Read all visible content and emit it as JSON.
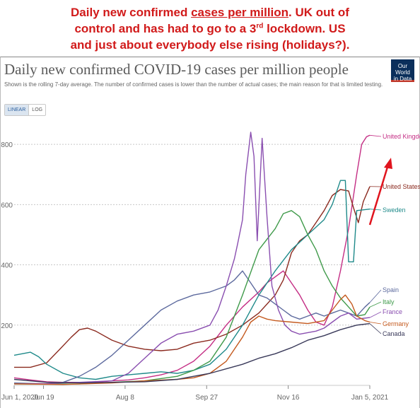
{
  "annotation": {
    "line1_a": "Daily new confirmed ",
    "line1_u": "cases per million",
    "line1_b": ". UK out of",
    "line2_a": "control and has had to go to a 3",
    "line2_sup": "rd",
    "line2_b": " lockdown. US",
    "line3": "and just about everybody else rising (holidays?).",
    "color": "#d11a1a"
  },
  "logo": {
    "line1": "Our World",
    "line2": "in Data"
  },
  "scale_toggle": {
    "linear": "LINEAR",
    "log": "LOG",
    "selected": "linear"
  },
  "chart_data": {
    "type": "line",
    "title": "Daily new confirmed COVID-19 cases per million people",
    "subtitle": "Shown is the rolling 7-day average. The number of confirmed cases is lower than the number of actual cases; the main reason for that is limited testing.",
    "xlabel": "",
    "ylabel": "",
    "x_ticks": [
      "Jun 1, 2020",
      "Jun 19",
      "Aug 8",
      "Sep 27",
      "Nov 16",
      "Jan 5, 2021"
    ],
    "x_tick_days": [
      0,
      18,
      68,
      118,
      168,
      218
    ],
    "y_ticks": [
      0,
      200,
      400,
      600,
      800
    ],
    "y_tick_labels": [
      "",
      "200",
      "400",
      "600",
      "800"
    ],
    "xlim_days": [
      0,
      218
    ],
    "ylim": [
      0,
      880
    ],
    "grid": "horizontal dotted",
    "legend": "line-end labels on right",
    "x_unit": "days since Jun 1, 2020",
    "series": [
      {
        "name": "United Kingdom",
        "color": "#c42d84",
        "points": [
          [
            0,
            25
          ],
          [
            10,
            18
          ],
          [
            20,
            12
          ],
          [
            30,
            10
          ],
          [
            40,
            10
          ],
          [
            50,
            10
          ],
          [
            60,
            15
          ],
          [
            70,
            18
          ],
          [
            80,
            25
          ],
          [
            90,
            35
          ],
          [
            100,
            50
          ],
          [
            110,
            80
          ],
          [
            120,
            130
          ],
          [
            130,
            200
          ],
          [
            140,
            260
          ],
          [
            150,
            310
          ],
          [
            155,
            340
          ],
          [
            160,
            360
          ],
          [
            165,
            380
          ],
          [
            170,
            340
          ],
          [
            175,
            300
          ],
          [
            180,
            250
          ],
          [
            185,
            210
          ],
          [
            190,
            200
          ],
          [
            195,
            260
          ],
          [
            200,
            380
          ],
          [
            205,
            520
          ],
          [
            210,
            700
          ],
          [
            213,
            800
          ],
          [
            216,
            825
          ],
          [
            218,
            830
          ]
        ]
      },
      {
        "name": "United States",
        "color": "#8b2a1f",
        "points": [
          [
            0,
            60
          ],
          [
            10,
            60
          ],
          [
            20,
            75
          ],
          [
            28,
            120
          ],
          [
            35,
            160
          ],
          [
            40,
            185
          ],
          [
            45,
            190
          ],
          [
            50,
            180
          ],
          [
            60,
            150
          ],
          [
            70,
            130
          ],
          [
            80,
            120
          ],
          [
            90,
            115
          ],
          [
            100,
            120
          ],
          [
            110,
            140
          ],
          [
            120,
            150
          ],
          [
            130,
            170
          ],
          [
            140,
            200
          ],
          [
            150,
            240
          ],
          [
            160,
            300
          ],
          [
            165,
            350
          ],
          [
            170,
            440
          ],
          [
            175,
            480
          ],
          [
            180,
            500
          ],
          [
            185,
            540
          ],
          [
            190,
            580
          ],
          [
            195,
            630
          ],
          [
            200,
            650
          ],
          [
            205,
            645
          ],
          [
            208,
            590
          ],
          [
            211,
            540
          ],
          [
            214,
            610
          ],
          [
            218,
            660
          ]
        ]
      },
      {
        "name": "Sweden",
        "color": "#1f8a8a",
        "points": [
          [
            0,
            100
          ],
          [
            10,
            110
          ],
          [
            15,
            95
          ],
          [
            20,
            70
          ],
          [
            30,
            40
          ],
          [
            40,
            25
          ],
          [
            50,
            20
          ],
          [
            60,
            30
          ],
          [
            70,
            35
          ],
          [
            80,
            40
          ],
          [
            90,
            45
          ],
          [
            100,
            40
          ],
          [
            110,
            50
          ],
          [
            120,
            70
          ],
          [
            130,
            120
          ],
          [
            140,
            200
          ],
          [
            150,
            300
          ],
          [
            160,
            380
          ],
          [
            170,
            450
          ],
          [
            180,
            500
          ],
          [
            190,
            550
          ],
          [
            195,
            600
          ],
          [
            200,
            680
          ],
          [
            203,
            680
          ],
          [
            205,
            410
          ],
          [
            208,
            410
          ],
          [
            210,
            580
          ],
          [
            218,
            585
          ]
        ]
      },
      {
        "name": "Spain",
        "color": "#5d6a9e",
        "points": [
          [
            0,
            8
          ],
          [
            20,
            5
          ],
          [
            30,
            10
          ],
          [
            40,
            30
          ],
          [
            50,
            60
          ],
          [
            60,
            100
          ],
          [
            70,
            150
          ],
          [
            80,
            200
          ],
          [
            90,
            250
          ],
          [
            100,
            280
          ],
          [
            110,
            300
          ],
          [
            120,
            310
          ],
          [
            130,
            330
          ],
          [
            135,
            350
          ],
          [
            140,
            380
          ],
          [
            145,
            340
          ],
          [
            150,
            300
          ],
          [
            155,
            290
          ],
          [
            160,
            270
          ],
          [
            165,
            250
          ],
          [
            170,
            230
          ],
          [
            175,
            220
          ],
          [
            180,
            230
          ],
          [
            185,
            240
          ],
          [
            190,
            230
          ],
          [
            195,
            240
          ],
          [
            200,
            250
          ],
          [
            205,
            240
          ],
          [
            210,
            230
          ],
          [
            215,
            260
          ],
          [
            218,
            275
          ]
        ]
      },
      {
        "name": "Italy",
        "color": "#3f9a4a",
        "points": [
          [
            0,
            5
          ],
          [
            20,
            4
          ],
          [
            40,
            5
          ],
          [
            60,
            10
          ],
          [
            80,
            15
          ],
          [
            100,
            30
          ],
          [
            110,
            50
          ],
          [
            120,
            80
          ],
          [
            130,
            160
          ],
          [
            140,
            300
          ],
          [
            150,
            450
          ],
          [
            160,
            520
          ],
          [
            165,
            570
          ],
          [
            170,
            580
          ],
          [
            175,
            560
          ],
          [
            180,
            500
          ],
          [
            185,
            450
          ],
          [
            190,
            380
          ],
          [
            195,
            330
          ],
          [
            200,
            290
          ],
          [
            205,
            260
          ],
          [
            210,
            230
          ],
          [
            215,
            235
          ],
          [
            218,
            260
          ]
        ]
      },
      {
        "name": "France",
        "color": "#8a4fb0",
        "points": [
          [
            0,
            5
          ],
          [
            20,
            6
          ],
          [
            40,
            10
          ],
          [
            60,
            15
          ],
          [
            70,
            40
          ],
          [
            80,
            90
          ],
          [
            90,
            140
          ],
          [
            100,
            170
          ],
          [
            110,
            180
          ],
          [
            120,
            200
          ],
          [
            125,
            250
          ],
          [
            130,
            330
          ],
          [
            135,
            420
          ],
          [
            137,
            470
          ],
          [
            140,
            550
          ],
          [
            142,
            700
          ],
          [
            145,
            840
          ],
          [
            147,
            760
          ],
          [
            149,
            480
          ],
          [
            152,
            820
          ],
          [
            155,
            560
          ],
          [
            158,
            330
          ],
          [
            162,
            250
          ],
          [
            166,
            200
          ],
          [
            170,
            180
          ],
          [
            175,
            170
          ],
          [
            180,
            175
          ],
          [
            185,
            180
          ],
          [
            190,
            190
          ],
          [
            195,
            210
          ],
          [
            200,
            230
          ],
          [
            205,
            240
          ],
          [
            210,
            220
          ],
          [
            218,
            225
          ]
        ]
      },
      {
        "name": "Germany",
        "color": "#c45a1f",
        "points": [
          [
            0,
            5
          ],
          [
            30,
            3
          ],
          [
            60,
            8
          ],
          [
            80,
            15
          ],
          [
            100,
            20
          ],
          [
            110,
            25
          ],
          [
            120,
            40
          ],
          [
            130,
            80
          ],
          [
            140,
            160
          ],
          [
            145,
            210
          ],
          [
            150,
            230
          ],
          [
            155,
            220
          ],
          [
            160,
            215
          ],
          [
            170,
            210
          ],
          [
            180,
            205
          ],
          [
            190,
            215
          ],
          [
            195,
            250
          ],
          [
            200,
            285
          ],
          [
            203,
            300
          ],
          [
            207,
            270
          ],
          [
            210,
            230
          ],
          [
            215,
            215
          ],
          [
            218,
            210
          ]
        ]
      },
      {
        "name": "Canada",
        "color": "#3a3a5a",
        "points": [
          [
            0,
            20
          ],
          [
            20,
            10
          ],
          [
            40,
            8
          ],
          [
            60,
            10
          ],
          [
            80,
            12
          ],
          [
            100,
            20
          ],
          [
            110,
            30
          ],
          [
            120,
            40
          ],
          [
            130,
            55
          ],
          [
            140,
            70
          ],
          [
            150,
            90
          ],
          [
            160,
            105
          ],
          [
            170,
            125
          ],
          [
            180,
            150
          ],
          [
            190,
            165
          ],
          [
            200,
            185
          ],
          [
            210,
            200
          ],
          [
            218,
            205
          ]
        ]
      }
    ]
  }
}
